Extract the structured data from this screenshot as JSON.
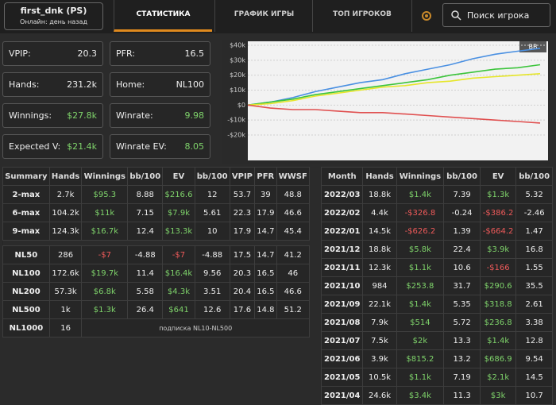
{
  "header": {
    "user": {
      "name": "first_dnk (PS)",
      "status": "Онлайн: день назад"
    },
    "tabs": [
      "СТАТИСТИКА",
      "ГРАФИК ИГРЫ",
      "ТОП ИГРОКОВ"
    ],
    "search": "Поиск игрока"
  },
  "stats": [
    {
      "label": "VPIP:",
      "value": "20.3"
    },
    {
      "label": "PFR:",
      "value": "16.5"
    },
    {
      "label": "Hands:",
      "value": "231.2k"
    },
    {
      "label": "Home:",
      "value": "NL100"
    },
    {
      "label": "Winnings:",
      "value": "$27.8k"
    },
    {
      "label": "Winrate:",
      "value": "9.98"
    },
    {
      "label": "Expected V:",
      "value": "$21.4k"
    },
    {
      "label": "Winrate EV:",
      "value": "8.05"
    }
  ],
  "chart_data": {
    "type": "line",
    "badge": "BB",
    "ylim": [
      -20000,
      40000
    ],
    "yticks": [
      {
        "value": 40000,
        "label": "$40k"
      },
      {
        "value": 30000,
        "label": "$30k"
      },
      {
        "value": 20000,
        "label": "$20k"
      },
      {
        "value": 10000,
        "label": "$10k"
      },
      {
        "value": 0,
        "label": "$0"
      },
      {
        "value": -10000,
        "label": "-$10k"
      },
      {
        "value": -20000,
        "label": "-$20k"
      }
    ],
    "grid": true,
    "series": [
      {
        "color": "#4a90e2",
        "values": [
          0,
          2000,
          5000,
          9000,
          12000,
          15000,
          17000,
          21000,
          24000,
          27000,
          31000,
          34000,
          36000,
          38000
        ]
      },
      {
        "color": "#3cc43c",
        "values": [
          0,
          2000,
          4000,
          7000,
          9000,
          11000,
          13000,
          15000,
          17000,
          20000,
          22000,
          24000,
          25000,
          27000
        ]
      },
      {
        "color": "#e6e62a",
        "values": [
          0,
          1000,
          3000,
          6000,
          8000,
          10000,
          12000,
          13000,
          15000,
          16000,
          18000,
          19000,
          20000,
          21000
        ]
      },
      {
        "color": "#e05050",
        "values": [
          0,
          -2000,
          -3000,
          -3000,
          -4000,
          -5000,
          -5000,
          -6000,
          -7000,
          -8000,
          -9000,
          -10000,
          -11000,
          -12000
        ]
      }
    ]
  },
  "summary_table": {
    "columns": [
      "Summary",
      "Hands",
      "Winnings",
      "bb/100",
      "EV",
      "bb/100",
      "VPIP",
      "PFR",
      "WWSF"
    ],
    "groups": [
      [
        [
          "2-max",
          "2.7k",
          "$95.3",
          "8.88",
          "$216.6",
          "12",
          "53.7",
          "39",
          "48.8"
        ],
        [
          "6-max",
          "104.2k",
          "$11k",
          "7.15",
          "$7.9k",
          "5.61",
          "22.3",
          "17.9",
          "46.6"
        ],
        [
          "9-max",
          "124.3k",
          "$16.7k",
          "12.4",
          "$13.3k",
          "10",
          "17.9",
          "14.7",
          "45.4"
        ]
      ],
      [
        [
          "NL50",
          "286",
          "-$7",
          "-4.88",
          "-$7",
          "-4.88",
          "17.5",
          "14.7",
          "41.2"
        ],
        [
          "NL100",
          "172.6k",
          "$19.7k",
          "11.4",
          "$16.4k",
          "9.56",
          "20.3",
          "16.5",
          "46"
        ],
        [
          "NL200",
          "57.3k",
          "$6.8k",
          "5.58",
          "$4.3k",
          "3.51",
          "20.4",
          "16.5",
          "46.6"
        ],
        [
          "NL500",
          "1k",
          "$1.3k",
          "26.4",
          "$641",
          "12.6",
          "17.6",
          "14.8",
          "51.2"
        ],
        [
          "NL1000",
          "16"
        ]
      ]
    ],
    "note": "подписка NL10-NL500"
  },
  "monthly_table": {
    "columns": [
      "Month",
      "Hands",
      "Winnings",
      "bb/100",
      "EV",
      "bb/100"
    ],
    "rows": [
      [
        "2022/03",
        "18.8k",
        "$1.4k",
        "7.39",
        "$1.3k",
        "5.32"
      ],
      [
        "2022/02",
        "4.4k",
        "-$326.8",
        "-0.24",
        "-$386.2",
        "-2.46"
      ],
      [
        "2022/01",
        "14.5k",
        "-$626.2",
        "1.39",
        "-$664.2",
        "1.47"
      ],
      [
        "2021/12",
        "18.8k",
        "$5.8k",
        "22.4",
        "$3.9k",
        "16.8"
      ],
      [
        "2021/11",
        "12.3k",
        "$1.1k",
        "10.6",
        "-$166",
        "1.55"
      ],
      [
        "2021/10",
        "984",
        "$253.8",
        "31.7",
        "$290.6",
        "35.5"
      ],
      [
        "2021/09",
        "22.1k",
        "$1.4k",
        "5.35",
        "$318.8",
        "2.61"
      ],
      [
        "2021/08",
        "7.9k",
        "$514",
        "5.72",
        "$236.8",
        "3.38"
      ],
      [
        "2021/07",
        "7.5k",
        "$2k",
        "13.3",
        "$1.4k",
        "12.8"
      ],
      [
        "2021/06",
        "3.9k",
        "$815.2",
        "13.2",
        "$686.9",
        "9.54"
      ],
      [
        "2021/05",
        "10.5k",
        "$1.1k",
        "7.19",
        "$2.1k",
        "14.5"
      ],
      [
        "2021/04",
        "24.6k",
        "$3.4k",
        "11.3",
        "$3k",
        "10.7"
      ]
    ]
  }
}
